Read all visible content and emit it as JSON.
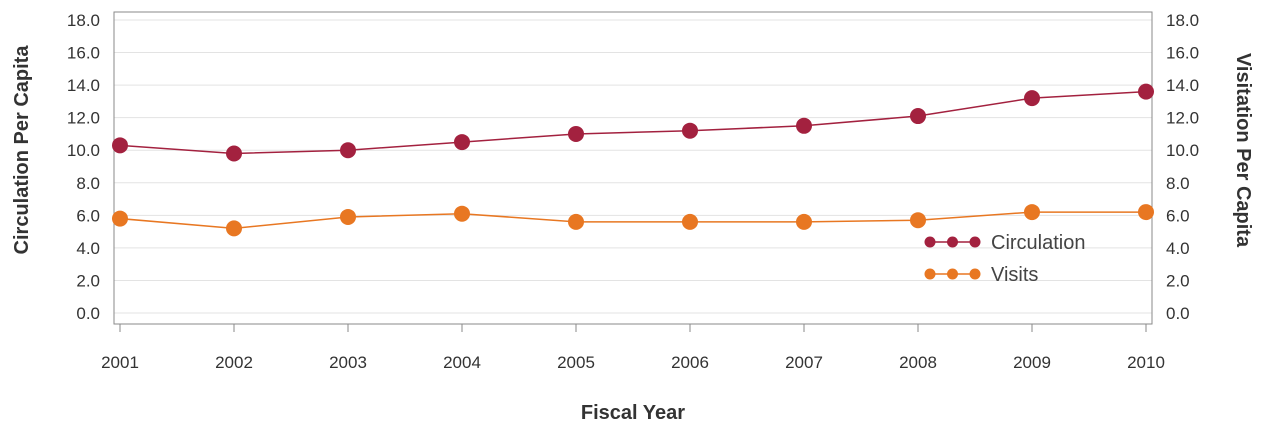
{
  "chart_data": {
    "type": "line",
    "xlabel": "Fiscal Year",
    "ylabel_left": "Circulation Per Capita",
    "ylabel_right": "Visitation Per Capita",
    "ylim": [
      0,
      18
    ],
    "y_ticks": [
      "0.0",
      "2.0",
      "4.0",
      "6.0",
      "8.0",
      "10.0",
      "12.0",
      "14.0",
      "16.0",
      "18.0"
    ],
    "x": [
      "2001",
      "2002",
      "2003",
      "2004",
      "2005",
      "2006",
      "2007",
      "2008",
      "2009",
      "2010"
    ],
    "grid": true,
    "legend_position": "bottom-right",
    "series": [
      {
        "name": "Circulation",
        "color": "#a3213f",
        "values": [
          10.3,
          9.8,
          10.0,
          10.5,
          11.0,
          11.2,
          11.5,
          12.1,
          13.2,
          13.6
        ]
      },
      {
        "name": "Visits",
        "color": "#e87722",
        "values": [
          5.8,
          5.2,
          5.9,
          6.1,
          5.6,
          5.6,
          5.6,
          5.7,
          6.2,
          6.2
        ]
      }
    ]
  }
}
